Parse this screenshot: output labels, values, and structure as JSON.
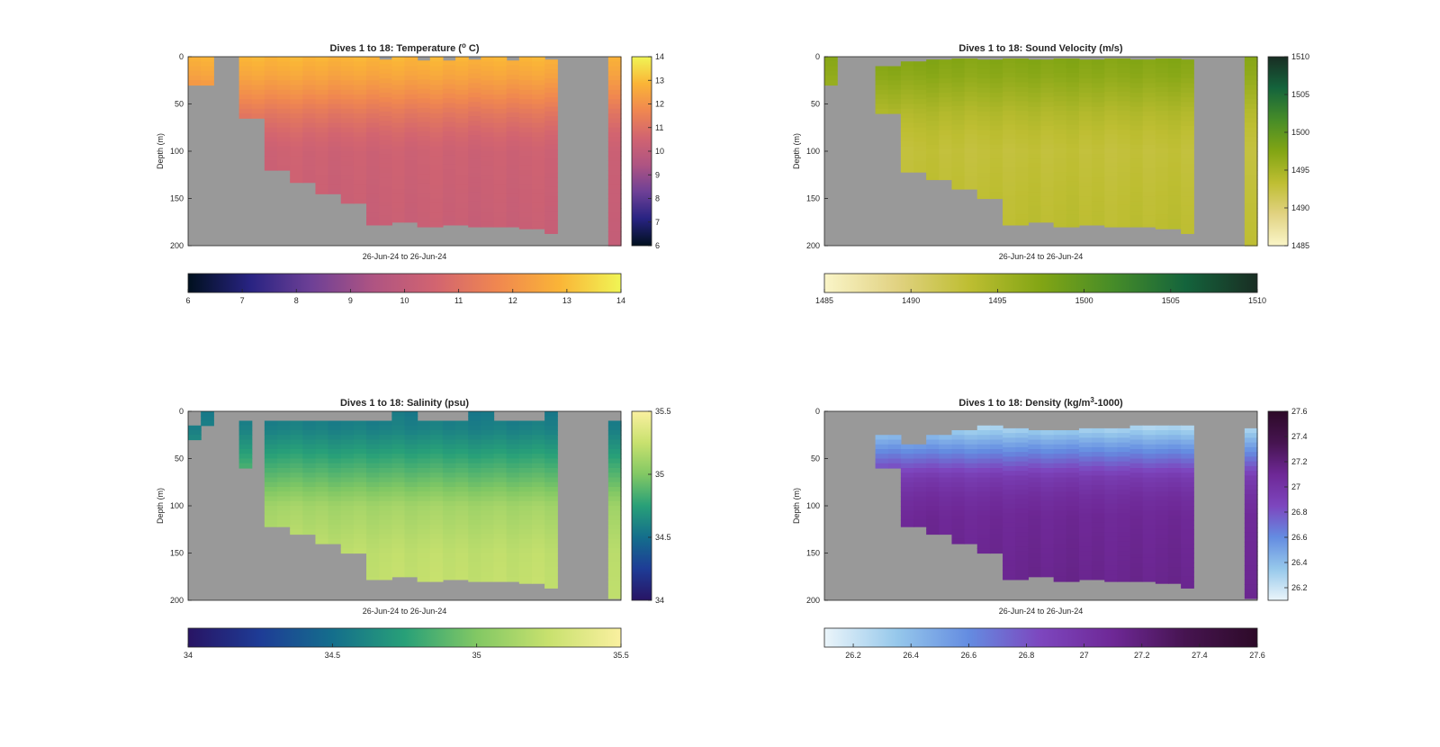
{
  "figure": {
    "background": "#ffffff",
    "nodata_color": "#999999"
  },
  "chart_data": [
    {
      "type": "heatmap",
      "title": "Dives 1 to 18: Temperature (",
      "title_sup": "o",
      "title_end": " C)",
      "xlabel": "26-Jun-24 to 26-Jun-24",
      "ylabel": "Depth (m)",
      "y_ticks": [
        "0",
        "50",
        "100",
        "150",
        "200"
      ],
      "ylim": [
        0,
        200
      ],
      "columns": 34,
      "top_depth": [
        0,
        0,
        200,
        200,
        0,
        0,
        0,
        0,
        0,
        0,
        0,
        0,
        0,
        0,
        0,
        3,
        0,
        0,
        4,
        0,
        4,
        0,
        3,
        0,
        0,
        4,
        0,
        0,
        3,
        200,
        200,
        200,
        200,
        0
      ],
      "bottom_depth": [
        30,
        30,
        0,
        0,
        65,
        65,
        120,
        120,
        133,
        133,
        145,
        145,
        155,
        155,
        178,
        178,
        175,
        175,
        180,
        180,
        178,
        178,
        180,
        180,
        180,
        180,
        182,
        182,
        187,
        0,
        0,
        0,
        0,
        200
      ],
      "stops": [
        [
          0,
          16,
          30
        ],
        [
          40,
          35,
          130
        ],
        [
          110,
          64,
          150
        ],
        [
          175,
          84,
          130
        ],
        [
          210,
          100,
          112
        ],
        [
          240,
          135,
          80
        ],
        [
          250,
          180,
          55
        ],
        [
          240,
          245,
          85
        ]
      ],
      "colorbar": {
        "min": 6,
        "max": 14,
        "ticks": [
          "6",
          "7",
          "8",
          "9",
          "10",
          "11",
          "12",
          "13",
          "14"
        ]
      },
      "profile": [
        {
          "d": 0,
          "v": 12.9
        },
        {
          "d": 20,
          "v": 12.5
        },
        {
          "d": 40,
          "v": 11.9
        },
        {
          "d": 60,
          "v": 11.2
        },
        {
          "d": 80,
          "v": 10.7
        },
        {
          "d": 100,
          "v": 10.4
        },
        {
          "d": 150,
          "v": 10.3
        },
        {
          "d": 200,
          "v": 10.2
        }
      ]
    },
    {
      "type": "heatmap",
      "title": "Dives 1 to 18: Sound Velocity (m/s)",
      "title_sup": "",
      "title_end": "",
      "xlabel": "26-Jun-24 to 26-Jun-24",
      "ylabel": "Depth (m)",
      "y_ticks": [
        "0",
        "50",
        "100",
        "150",
        "200"
      ],
      "ylim": [
        0,
        200
      ],
      "columns": 34,
      "top_depth": [
        0,
        200,
        200,
        200,
        10,
        10,
        5,
        5,
        3,
        3,
        2,
        2,
        3,
        3,
        2,
        2,
        3,
        3,
        2,
        2,
        3,
        3,
        2,
        2,
        3,
        3,
        2,
        2,
        3,
        200,
        200,
        200,
        200,
        0
      ],
      "bottom_depth": [
        30,
        0,
        0,
        0,
        60,
        60,
        122,
        122,
        130,
        130,
        140,
        140,
        150,
        150,
        178,
        178,
        175,
        175,
        180,
        180,
        178,
        178,
        180,
        180,
        180,
        180,
        182,
        182,
        187,
        0,
        0,
        0,
        0,
        200
      ],
      "stops": [
        [
          250,
          245,
          200
        ],
        [
          225,
          210,
          130
        ],
        [
          190,
          190,
          50
        ],
        [
          130,
          165,
          20
        ],
        [
          70,
          140,
          40
        ],
        [
          20,
          100,
          60
        ],
        [
          25,
          45,
          35
        ]
      ],
      "colorbar": {
        "min": 1485,
        "max": 1510,
        "ticks": [
          "1485",
          "1490",
          "1495",
          "1500",
          "1505",
          "1510"
        ]
      },
      "profile": [
        {
          "d": 0,
          "v": 1497.5
        },
        {
          "d": 20,
          "v": 1496.8
        },
        {
          "d": 40,
          "v": 1495.5
        },
        {
          "d": 60,
          "v": 1494.2
        },
        {
          "d": 80,
          "v": 1493.4
        },
        {
          "d": 100,
          "v": 1492.9
        },
        {
          "d": 150,
          "v": 1493.3
        },
        {
          "d": 200,
          "v": 1493.6
        }
      ]
    },
    {
      "type": "heatmap",
      "title": "Dives 1 to 18: Salinity (psu)",
      "title_sup": "",
      "title_end": "",
      "xlabel": "26-Jun-24 to 26-Jun-24",
      "ylabel": "Depth (m)",
      "y_ticks": [
        "0",
        "50",
        "100",
        "150",
        "200"
      ],
      "ylim": [
        0,
        200
      ],
      "columns": 34,
      "top_depth": [
        15,
        0,
        200,
        200,
        10,
        200,
        10,
        10,
        10,
        10,
        10,
        10,
        10,
        10,
        10,
        10,
        0,
        0,
        10,
        10,
        10,
        10,
        0,
        0,
        10,
        10,
        10,
        10,
        0,
        200,
        200,
        200,
        200,
        10
      ],
      "bottom_depth": [
        30,
        15,
        0,
        0,
        60,
        0,
        122,
        122,
        130,
        130,
        140,
        140,
        150,
        150,
        178,
        178,
        175,
        175,
        180,
        180,
        178,
        178,
        180,
        180,
        180,
        180,
        182,
        182,
        187,
        0,
        0,
        0,
        0,
        198
      ],
      "stops": [
        [
          40,
          20,
          100
        ],
        [
          30,
          60,
          150
        ],
        [
          20,
          110,
          140
        ],
        [
          40,
          160,
          120
        ],
        [
          130,
          200,
          100
        ],
        [
          200,
          225,
          110
        ],
        [
          250,
          240,
          160
        ]
      ],
      "colorbar": {
        "min": 34,
        "max": 35.5,
        "ticks": [
          "34",
          "34.5",
          "35",
          "35.5"
        ]
      },
      "profile": [
        {
          "d": 0,
          "v": 34.55
        },
        {
          "d": 20,
          "v": 34.6
        },
        {
          "d": 40,
          "v": 34.72
        },
        {
          "d": 60,
          "v": 34.85
        },
        {
          "d": 80,
          "v": 34.98
        },
        {
          "d": 100,
          "v": 35.12
        },
        {
          "d": 150,
          "v": 35.22
        },
        {
          "d": 200,
          "v": 35.24
        }
      ]
    },
    {
      "type": "heatmap",
      "title": "Dives 1 to 18: Density (kg/m",
      "title_sup": "3",
      "title_end": "-1000)",
      "xlabel": "26-Jun-24 to 26-Jun-24",
      "ylabel": "Depth (m)",
      "y_ticks": [
        "0",
        "50",
        "100",
        "150",
        "200"
      ],
      "ylim": [
        0,
        200
      ],
      "columns": 34,
      "top_depth": [
        200,
        200,
        200,
        200,
        25,
        25,
        35,
        35,
        25,
        25,
        20,
        20,
        15,
        15,
        18,
        18,
        20,
        20,
        20,
        20,
        18,
        18,
        18,
        18,
        15,
        15,
        15,
        15,
        15,
        200,
        200,
        200,
        200,
        18
      ],
      "bottom_depth": [
        0,
        0,
        0,
        0,
        60,
        60,
        122,
        122,
        130,
        130,
        140,
        140,
        150,
        150,
        178,
        178,
        175,
        175,
        180,
        180,
        178,
        178,
        180,
        180,
        180,
        180,
        182,
        182,
        187,
        0,
        0,
        0,
        0,
        198
      ],
      "stops": [
        [
          235,
          245,
          250
        ],
        [
          150,
          200,
          235
        ],
        [
          100,
          140,
          225
        ],
        [
          125,
          70,
          190
        ],
        [
          110,
          40,
          150
        ],
        [
          70,
          20,
          80
        ],
        [
          45,
          10,
          40
        ]
      ],
      "colorbar": {
        "min": 26.1,
        "max": 27.6,
        "ticks": [
          "26.2",
          "26.4",
          "26.6",
          "26.8",
          "27",
          "27.2",
          "27.4",
          "27.6"
        ]
      },
      "profile": [
        {
          "d": 15,
          "v": 26.25
        },
        {
          "d": 30,
          "v": 26.45
        },
        {
          "d": 50,
          "v": 26.7
        },
        {
          "d": 70,
          "v": 26.95
        },
        {
          "d": 90,
          "v": 27.05
        },
        {
          "d": 110,
          "v": 27.1
        },
        {
          "d": 150,
          "v": 27.12
        },
        {
          "d": 200,
          "v": 27.14
        }
      ]
    }
  ]
}
